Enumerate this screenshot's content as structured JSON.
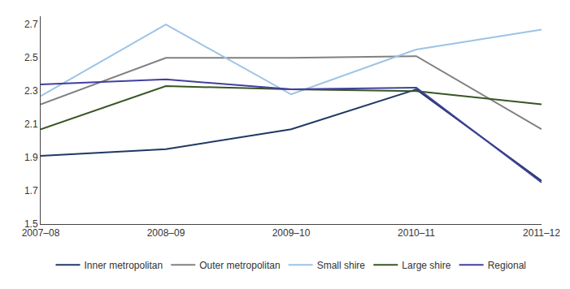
{
  "chart_data": {
    "type": "line",
    "categories": [
      "2007–08",
      "2008–09",
      "2009–10",
      "2010–11",
      "2011–12"
    ],
    "series": [
      {
        "name": "Inner metropolitan",
        "color": "#1f3864",
        "values": [
          1.91,
          1.95,
          2.07,
          2.31,
          1.76
        ]
      },
      {
        "name": "Outer metropolitan",
        "color": "#808080",
        "values": [
          2.22,
          2.5,
          2.5,
          2.51,
          2.07
        ]
      },
      {
        "name": "Small shire",
        "color": "#9dc3e6",
        "values": [
          2.27,
          2.7,
          2.28,
          2.55,
          2.67
        ]
      },
      {
        "name": "Large shire",
        "color": "#375623",
        "values": [
          2.07,
          2.33,
          2.31,
          2.3,
          2.22
        ]
      },
      {
        "name": "Regional",
        "color": "#4040a0",
        "values": [
          2.34,
          2.37,
          2.31,
          2.32,
          1.75
        ]
      }
    ],
    "ylim": [
      1.5,
      2.75
    ],
    "yticks": [
      1.5,
      1.7,
      1.9,
      2.1,
      2.3,
      2.5,
      2.7
    ],
    "grid": false,
    "legend": "bottom"
  }
}
